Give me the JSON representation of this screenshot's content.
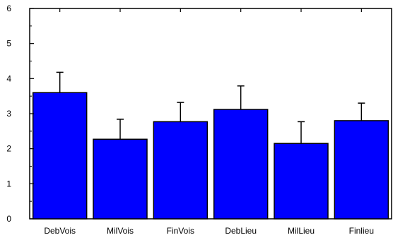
{
  "chart_data": {
    "type": "bar",
    "categories": [
      "DebVois",
      "MilVois",
      "FinVois",
      "DebLieu",
      "MilLieu",
      "Finlieu"
    ],
    "values": [
      3.6,
      2.27,
      2.77,
      3.12,
      2.15,
      2.8
    ],
    "error_upper": [
      0.58,
      0.57,
      0.55,
      0.67,
      0.62,
      0.5
    ],
    "ylim": [
      0,
      6
    ],
    "yticks": [
      "0",
      "1",
      "2",
      "3",
      "4",
      "5",
      "6"
    ],
    "bar_color": "#0000ff",
    "grid": false,
    "legend": "none"
  }
}
